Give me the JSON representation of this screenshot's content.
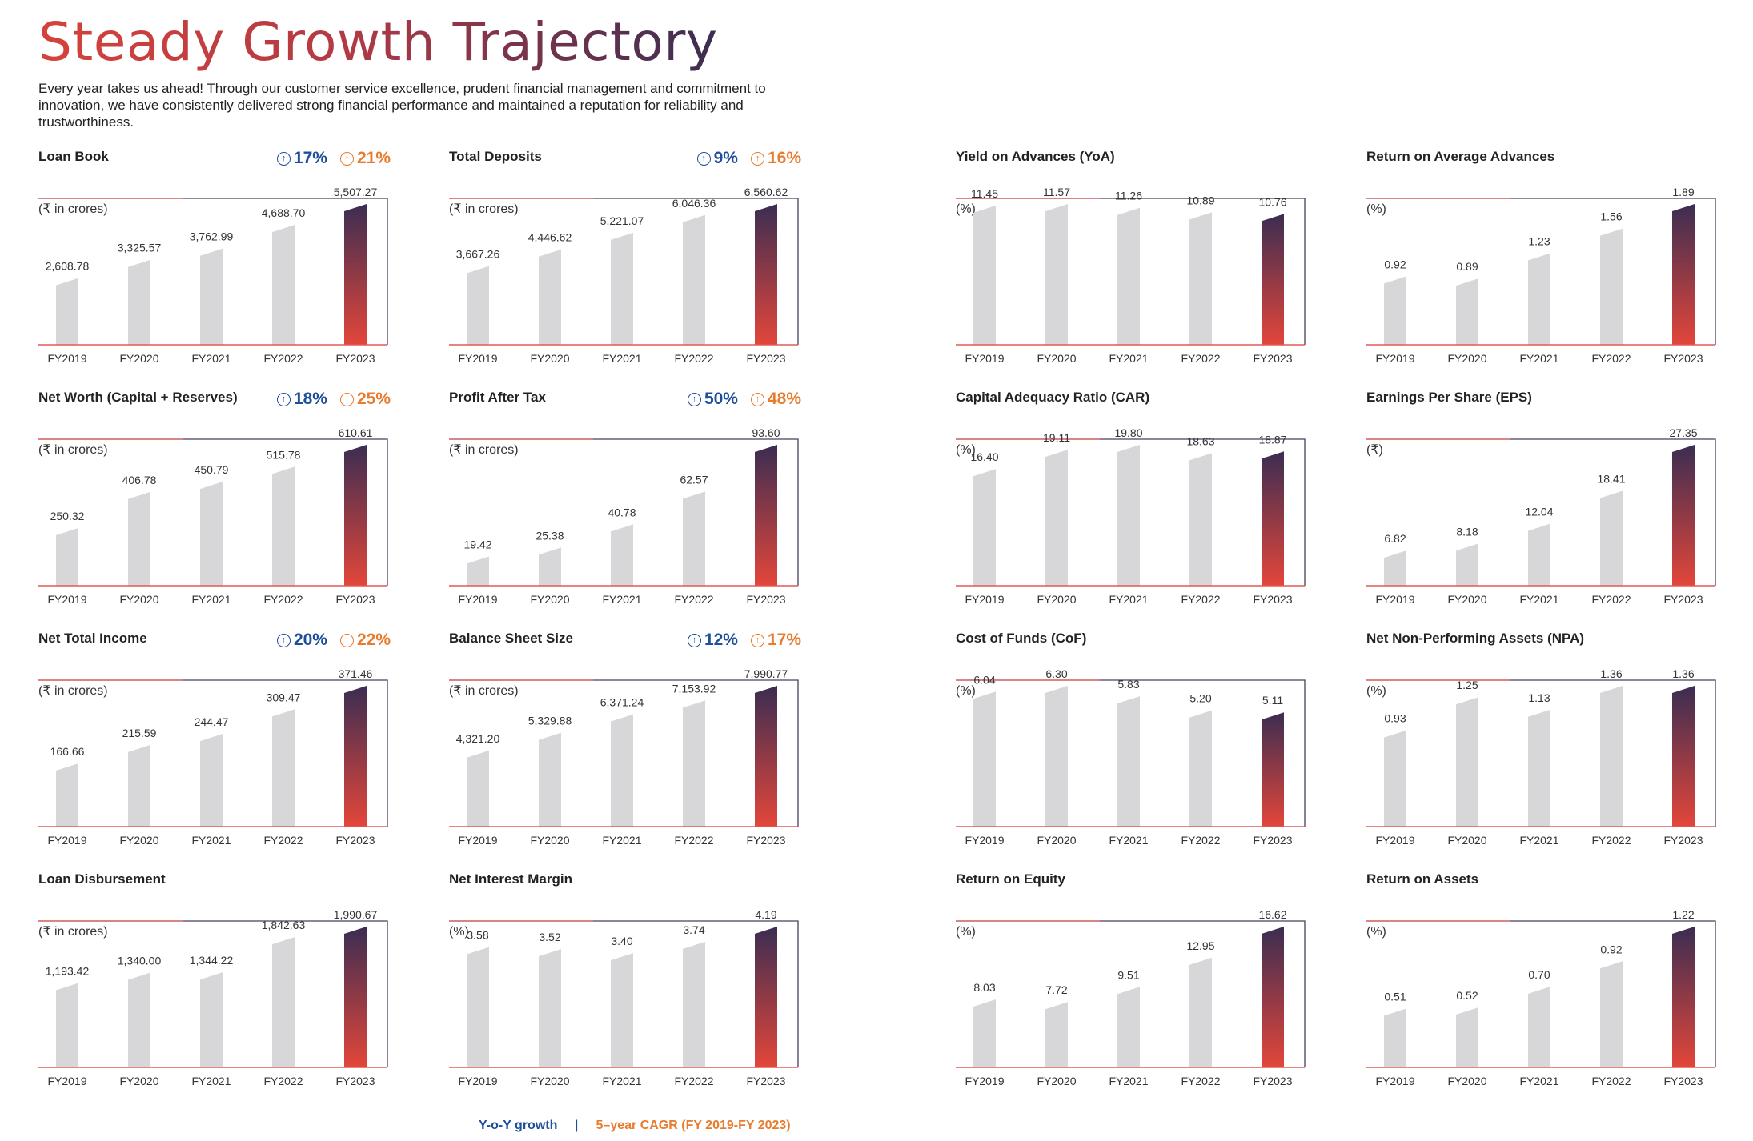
{
  "page_title": "Steady Growth Trajectory",
  "intro": "Every year takes us ahead! Through our customer service excellence, prudent financial management and commitment to innovation, we have consistently delivered strong financial performance and maintained a reputation for reliability and trustworthiness.",
  "legend": {
    "yoy": "Y-o-Y growth",
    "separator": "|",
    "cagr": "5–year CAGR (FY 2019-FY 2023)"
  },
  "colors": {
    "bar": "#d7d7d9",
    "highlight_top": "#3b2d52",
    "highlight_bottom": "#e3463a",
    "baseline": "#e05a55",
    "frame": "#4a3d5c",
    "yoy": "#1f4e9b",
    "cagr": "#e77b2e"
  },
  "icons": {
    "growth_arrow": "arrow-up-circle-icon"
  },
  "chart_data": [
    {
      "id": "loan-book",
      "type": "bar",
      "title": "Loan Book",
      "unit": "(₹ in crores)",
      "yoy": "17%",
      "cagr": "21%",
      "categories": [
        "FY2019",
        "FY2020",
        "FY2021",
        "FY2022",
        "FY2023"
      ],
      "values": [
        2608.78,
        3325.57,
        3762.99,
        4688.7,
        5507.27
      ],
      "labels": [
        "2,608.78",
        "3,325.57",
        "3,762.99",
        "4,688.70",
        "5,507.27"
      ]
    },
    {
      "id": "total-deposits",
      "type": "bar",
      "title": "Total Deposits",
      "unit": "(₹ in crores)",
      "yoy": "9%",
      "cagr": "16%",
      "categories": [
        "FY2019",
        "FY2020",
        "FY2021",
        "FY2022",
        "FY2023"
      ],
      "values": [
        3667.26,
        4446.62,
        5221.07,
        6046.36,
        6560.62
      ],
      "labels": [
        "3,667.26",
        "4,446.62",
        "5,221.07",
        "6,046.36",
        "6,560.62"
      ]
    },
    {
      "id": "yield-on-advances",
      "type": "bar",
      "title": "Yield on Advances (YoA)",
      "unit": "(%)",
      "categories": [
        "FY2019",
        "FY2020",
        "FY2021",
        "FY2022",
        "FY2023"
      ],
      "values": [
        11.45,
        11.57,
        11.26,
        10.89,
        10.76
      ],
      "labels": [
        "11.45",
        "11.57",
        "11.26",
        "10.89",
        "10.76"
      ]
    },
    {
      "id": "return-on-average-advances",
      "type": "bar",
      "title": "Return on Average Advances",
      "unit": "(%)",
      "categories": [
        "FY2019",
        "FY2020",
        "FY2021",
        "FY2022",
        "FY2023"
      ],
      "values": [
        0.92,
        0.89,
        1.23,
        1.56,
        1.89
      ],
      "labels": [
        "0.92",
        "0.89",
        "1.23",
        "1.56",
        "1.89"
      ]
    },
    {
      "id": "net-worth",
      "type": "bar",
      "title": "Net Worth (Capital + Reserves)",
      "unit": "(₹ in crores)",
      "yoy": "18%",
      "cagr": "25%",
      "categories": [
        "FY2019",
        "FY2020",
        "FY2021",
        "FY2022",
        "FY2023"
      ],
      "values": [
        250.32,
        406.78,
        450.79,
        515.78,
        610.61
      ],
      "labels": [
        "250.32",
        "406.78",
        "450.79",
        "515.78",
        "610.61"
      ]
    },
    {
      "id": "profit-after-tax",
      "type": "bar",
      "title": "Profit After Tax",
      "unit": "(₹ in crores)",
      "yoy": "50%",
      "cagr": "48%",
      "categories": [
        "FY2019",
        "FY2020",
        "FY2021",
        "FY2022",
        "FY2023"
      ],
      "values": [
        19.42,
        25.38,
        40.78,
        62.57,
        93.6
      ],
      "labels": [
        "19.42",
        "25.38",
        "40.78",
        "62.57",
        "93.60"
      ]
    },
    {
      "id": "capital-adequacy-ratio",
      "type": "bar",
      "title": "Capital Adequacy Ratio (CAR)",
      "unit": "(%)",
      "categories": [
        "FY2019",
        "FY2020",
        "FY2021",
        "FY2022",
        "FY2023"
      ],
      "values": [
        16.4,
        19.11,
        19.8,
        18.63,
        18.87
      ],
      "labels": [
        "16.40",
        "19.11",
        "19.80",
        "18.63",
        "18.87"
      ]
    },
    {
      "id": "earnings-per-share",
      "type": "bar",
      "title": "Earnings Per Share (EPS)",
      "unit": "(₹)",
      "categories": [
        "FY2019",
        "FY2020",
        "FY2021",
        "FY2022",
        "FY2023"
      ],
      "values": [
        6.82,
        8.18,
        12.04,
        18.41,
        27.35
      ],
      "labels": [
        "6.82",
        "8.18",
        "12.04",
        "18.41",
        "27.35"
      ]
    },
    {
      "id": "net-total-income",
      "type": "bar",
      "title": "Net Total Income",
      "unit": "(₹ in crores)",
      "yoy": "20%",
      "cagr": "22%",
      "categories": [
        "FY2019",
        "FY2020",
        "FY2021",
        "FY2022",
        "FY2023"
      ],
      "values": [
        166.66,
        215.59,
        244.47,
        309.47,
        371.46
      ],
      "labels": [
        "166.66",
        "215.59",
        "244.47",
        "309.47",
        "371.46"
      ]
    },
    {
      "id": "balance-sheet-size",
      "type": "bar",
      "title": "Balance Sheet Size",
      "unit": "(₹ in crores)",
      "yoy": "12%",
      "cagr": "17%",
      "categories": [
        "FY2019",
        "FY2020",
        "FY2021",
        "FY2022",
        "FY2023"
      ],
      "values": [
        4321.2,
        5329.88,
        6371.24,
        7153.92,
        7990.77
      ],
      "labels": [
        "4,321.20",
        "5,329.88",
        "6,371.24",
        "7,153.92",
        "7,990.77"
      ]
    },
    {
      "id": "cost-of-funds",
      "type": "bar",
      "title": "Cost of Funds (CoF)",
      "unit": "(%)",
      "categories": [
        "FY2019",
        "FY2020",
        "FY2021",
        "FY2022",
        "FY2023"
      ],
      "values": [
        6.04,
        6.3,
        5.83,
        5.2,
        5.11
      ],
      "labels": [
        "6.04",
        "6.30",
        "5.83",
        "5.20",
        "5.11"
      ]
    },
    {
      "id": "net-npa",
      "type": "bar",
      "title": "Net Non-Performing Assets (NPA)",
      "unit": "(%)",
      "categories": [
        "FY2019",
        "FY2020",
        "FY2021",
        "FY2022",
        "FY2023"
      ],
      "values": [
        0.93,
        1.25,
        1.13,
        1.36,
        1.36
      ],
      "labels": [
        "0.93",
        "1.25",
        "1.13",
        "1.36",
        "1.36"
      ]
    },
    {
      "id": "loan-disbursement",
      "type": "bar",
      "title": "Loan Disbursement",
      "unit": "(₹ in crores)",
      "categories": [
        "FY2019",
        "FY2020",
        "FY2021",
        "FY2022",
        "FY2023"
      ],
      "values": [
        1193.42,
        1340.0,
        1344.22,
        1842.63,
        1990.67
      ],
      "labels": [
        "1,193.42",
        "1,340.00",
        "1,344.22",
        "1,842.63",
        "1,990.67"
      ]
    },
    {
      "id": "net-interest-margin",
      "type": "bar",
      "title": "Net Interest Margin",
      "unit": "(%)",
      "categories": [
        "FY2019",
        "FY2020",
        "FY2021",
        "FY2022",
        "FY2023"
      ],
      "values": [
        3.58,
        3.52,
        3.4,
        3.74,
        4.19
      ],
      "labels": [
        "3.58",
        "3.52",
        "3.40",
        "3.74",
        "4.19"
      ]
    },
    {
      "id": "return-on-equity",
      "type": "bar",
      "title": "Return on Equity",
      "unit": "(%)",
      "categories": [
        "FY2019",
        "FY2020",
        "FY2021",
        "FY2022",
        "FY2023"
      ],
      "values": [
        8.03,
        7.72,
        9.51,
        12.95,
        16.62
      ],
      "labels": [
        "8.03",
        "7.72",
        "9.51",
        "12.95",
        "16.62"
      ]
    },
    {
      "id": "return-on-assets",
      "type": "bar",
      "title": "Return on Assets",
      "unit": "(%)",
      "categories": [
        "FY2019",
        "FY2020",
        "FY2021",
        "FY2022",
        "FY2023"
      ],
      "values": [
        0.51,
        0.52,
        0.7,
        0.92,
        1.22
      ],
      "labels": [
        "0.51",
        "0.52",
        "0.70",
        "0.92",
        "1.22"
      ]
    }
  ]
}
